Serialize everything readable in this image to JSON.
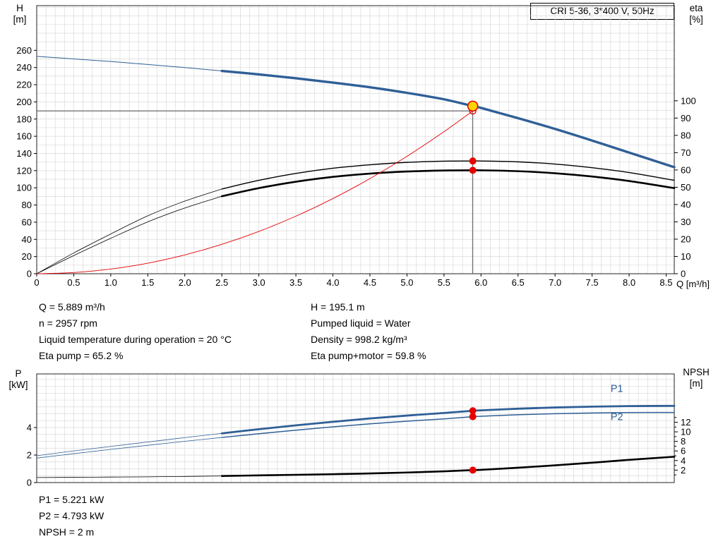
{
  "title_box": {
    "label": "CRI 5-36, 3*400 V, 50Hz"
  },
  "top_chart": {
    "y_title": "H",
    "y_unit": "[m]",
    "y2_title": "eta",
    "y2_unit": "[%]",
    "x_title": "Q [m³/h]"
  },
  "bottom_chart": {
    "y_title": "P",
    "y_unit": "[kW]",
    "y2_title": "NPSH",
    "y2_unit": "[m]"
  },
  "info_block": {
    "left": [
      "Q = 5.889 m³/h",
      "n = 2957 rpm",
      "Liquid temperature during operation = 20 °C",
      "Eta pump = 65.2 %"
    ],
    "right": [
      "H = 195.1 m",
      "Pumped liquid = Water",
      "Density = 998.2 kg/m³",
      "Eta pump+motor = 59.8 %"
    ]
  },
  "result_block": [
    "P1 = 5.221 kW",
    "P2 = 4.793 kW",
    "NPSH = 2 m"
  ],
  "chart_data": [
    {
      "type": "line",
      "title": "CRI 5-36, 3*400 V, 50Hz",
      "xlabel": "Q [m³/h]",
      "ylabel": "H [m]",
      "y2label": "eta [%]",
      "xlim": [
        0,
        8.61
      ],
      "ylim": [
        0,
        312
      ],
      "y2lim": [
        0,
        155
      ],
      "xticks": [
        0,
        0.5,
        1,
        1.5,
        2,
        2.5,
        3,
        3.5,
        4,
        4.5,
        5,
        5.5,
        6,
        6.5,
        7,
        7.5,
        8,
        8.5
      ],
      "xtick_labels": [
        "0",
        "0.5",
        "1.0",
        "1.5",
        "2.0",
        "2.5",
        "3.0",
        "3.5",
        "4.0",
        "4.5",
        "5.0",
        "5.5",
        "6.0",
        "6.5",
        "7.0",
        "7.5",
        "8.0",
        "8.5"
      ],
      "yticks": [
        0,
        20,
        40,
        60,
        80,
        100,
        120,
        140,
        160,
        180,
        200,
        220,
        240,
        260
      ],
      "y2ticks": [
        0,
        10,
        20,
        30,
        40,
        50,
        60,
        70,
        80,
        90,
        100
      ],
      "grid": {
        "x_step": 0.125,
        "y_step": 10,
        "color": "#dadada"
      },
      "crosshair": {
        "q": 5.889,
        "h_line": 189.5,
        "v_top": 195.1
      },
      "duty_point": {
        "Q": 5.889,
        "H": 195.1,
        "eta_pump": 65.2,
        "eta_pump_motor": 59.8
      },
      "series": [
        {
          "name": "head",
          "axis": "y",
          "color": "#2f5f96",
          "thin": 1,
          "thick": 3.4,
          "thin_until": 2.5,
          "x": [
            0,
            0.5,
            1,
            1.5,
            2,
            2.5,
            3,
            3.5,
            4,
            4.5,
            5,
            5.5,
            5.889,
            6,
            6.5,
            7,
            7.5,
            8,
            8.61
          ],
          "values": [
            253,
            250,
            247,
            243.5,
            240,
            236,
            232,
            227.5,
            222.5,
            217,
            210.5,
            203,
            195.1,
            193,
            181,
            168.5,
            155,
            141,
            124
          ]
        },
        {
          "name": "eta-pump",
          "axis": "y2",
          "color": "#000000",
          "thin": 0.8,
          "thick": 1.4,
          "thin_until": 2.5,
          "x": [
            0,
            0.5,
            1,
            1.5,
            2,
            2.5,
            3,
            3.5,
            4,
            4.5,
            5,
            5.5,
            5.889,
            6,
            6.5,
            7,
            7.5,
            8,
            8.61
          ],
          "values": [
            0,
            12,
            23,
            33.5,
            42,
            49,
            54,
            58,
            61,
            63,
            64.4,
            65.1,
            65.2,
            65.2,
            64.7,
            63.4,
            61.3,
            58.5,
            54
          ]
        },
        {
          "name": "eta-pump-motor",
          "axis": "y2",
          "color": "#000000",
          "thin": 0.8,
          "thick": 2.6,
          "thin_until": 2.5,
          "x": [
            0,
            0.5,
            1,
            1.5,
            2,
            2.5,
            3,
            3.5,
            4,
            4.5,
            5,
            5.5,
            5.889,
            6,
            6.5,
            7,
            7.5,
            8,
            8.61
          ],
          "values": [
            0,
            10.5,
            20.5,
            30,
            38,
            44.8,
            49.5,
            53.2,
            56,
            57.9,
            59.1,
            59.7,
            59.8,
            59.8,
            59.3,
            58.1,
            56.2,
            53.6,
            49.5
          ]
        },
        {
          "name": "system-curve",
          "axis": "y",
          "color": "#e60000",
          "thin": 0.9,
          "thin_until": 99,
          "x": [
            0,
            0.5,
            1,
            1.5,
            2,
            2.5,
            3,
            3.5,
            4,
            4.5,
            5,
            5.5,
            5.889
          ],
          "values": [
            0,
            1.4,
            5.5,
            12.3,
            21.9,
            34.2,
            49.2,
            67,
            87.5,
            110.7,
            136.6,
            165.3,
            189.5
          ]
        }
      ],
      "markers": [
        {
          "name": "requested-duty-marker",
          "x": 5.889,
          "axis": "y",
          "value": 189.5,
          "r": 4.5,
          "stroke": "#e60000",
          "sw": 1.3
        },
        {
          "name": "eta-pump-dot",
          "x": 5.889,
          "axis": "y2",
          "value": 65.2,
          "r": 5,
          "fill": "#e60000"
        },
        {
          "name": "eta-pump-motor-dot",
          "x": 5.889,
          "axis": "y2",
          "value": 59.8,
          "r": 5,
          "fill": "#e60000"
        },
        {
          "name": "duty-point-marker",
          "x": 5.889,
          "axis": "y",
          "value": 195.1,
          "r": 7,
          "fill": "#ffd400",
          "stroke": "#e60000",
          "sw": 1.6
        }
      ]
    },
    {
      "type": "line",
      "ylabel": "P [kW]",
      "y2label": "NPSH [m]",
      "xlim": [
        0,
        8.61
      ],
      "ylim": [
        0,
        7.9
      ],
      "y2lim": [
        -0.6,
        22.1
      ],
      "yticks": [
        0,
        2,
        4
      ],
      "y2ticks": [
        2,
        4,
        6,
        8,
        10,
        12
      ],
      "y2minor": [
        1,
        3,
        5,
        7,
        9,
        11,
        13
      ],
      "grid": {
        "x_step": 0.125,
        "y_step": 0.5,
        "color": "#dadada"
      },
      "duty_point": {
        "Q": 5.889,
        "P1": 5.221,
        "P2": 4.793,
        "NPSH": 2
      },
      "series": [
        {
          "name": "p1",
          "axis": "y",
          "color": "#2f5f96",
          "thin": 0.8,
          "thick": 2.8,
          "thin_until": 2.5,
          "x": [
            0,
            0.5,
            1,
            1.5,
            2,
            2.5,
            3,
            3.5,
            4,
            4.5,
            5,
            5.5,
            5.889,
            6,
            6.5,
            7,
            7.5,
            8,
            8.61
          ],
          "values": [
            1.95,
            2.3,
            2.63,
            2.95,
            3.27,
            3.58,
            3.88,
            4.16,
            4.42,
            4.66,
            4.87,
            5.06,
            5.221,
            5.25,
            5.37,
            5.46,
            5.52,
            5.56,
            5.58
          ]
        },
        {
          "name": "p2",
          "axis": "y",
          "color": "#2f5f96",
          "thin": 0.8,
          "thick": 1.5,
          "thin_until": 2.5,
          "x": [
            0,
            0.5,
            1,
            1.5,
            2,
            2.5,
            3,
            3.5,
            4,
            4.5,
            5,
            5.5,
            5.889,
            6,
            6.5,
            7,
            7.5,
            8,
            8.61
          ],
          "values": [
            1.78,
            2.1,
            2.41,
            2.71,
            3.0,
            3.28,
            3.55,
            3.81,
            4.05,
            4.27,
            4.46,
            4.63,
            4.793,
            4.82,
            4.93,
            5.01,
            5.06,
            5.09,
            5.1
          ]
        },
        {
          "name": "npsh",
          "axis": "y2",
          "color": "#000000",
          "thin": 0.8,
          "thick": 2.6,
          "thin_until": 2.5,
          "x": [
            0,
            0.5,
            1,
            1.5,
            2,
            2.5,
            3,
            3.5,
            4,
            4.5,
            5,
            5.5,
            5.889,
            6,
            6.5,
            7,
            7.5,
            8,
            8.61
          ],
          "values": [
            0.45,
            0.5,
            0.55,
            0.6,
            0.68,
            0.78,
            0.9,
            1.02,
            1.15,
            1.3,
            1.5,
            1.75,
            2.0,
            2.07,
            2.5,
            3.0,
            3.55,
            4.15,
            4.8
          ]
        }
      ],
      "curve_labels": [
        {
          "text": "P1",
          "x": 7.75,
          "axis": "y",
          "value": 6.6,
          "color": "#2f5f96"
        },
        {
          "text": "P2",
          "x": 7.75,
          "axis": "y",
          "value": 4.55,
          "color": "#2f5f96"
        }
      ],
      "markers": [
        {
          "name": "p1-dot",
          "x": 5.889,
          "axis": "y",
          "value": 5.221,
          "r": 5,
          "fill": "#e60000"
        },
        {
          "name": "p2-dot",
          "x": 5.889,
          "axis": "y",
          "value": 4.793,
          "r": 5,
          "fill": "#e60000"
        },
        {
          "name": "npsh-dot",
          "x": 5.889,
          "axis": "y2",
          "value": 2,
          "r": 5,
          "fill": "#e60000"
        }
      ]
    }
  ]
}
